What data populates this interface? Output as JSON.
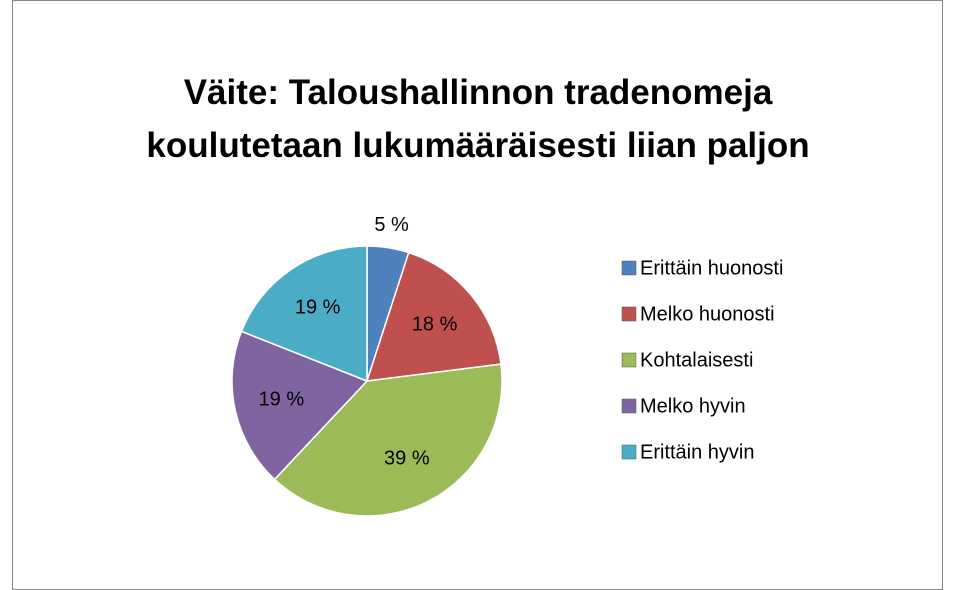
{
  "chart_data": {
    "type": "pie",
    "title": "Väite: Taloushallinnon tradenomeja koulutetaan lukumääräisesti liian paljon",
    "categories": [
      "Erittäin huonosti",
      "Melko huonosti",
      "Kohtalaisesti",
      "Melko hyvin",
      "Erittäin hyvin"
    ],
    "values": [
      5,
      18,
      39,
      19,
      19
    ],
    "value_labels": [
      "5 %",
      "18 %",
      "39 %",
      "19 %",
      "19 %"
    ],
    "colors": [
      "#4f81bd",
      "#c0504d",
      "#9bbb59",
      "#8064a2",
      "#4bacc6"
    ],
    "legend": "right"
  }
}
